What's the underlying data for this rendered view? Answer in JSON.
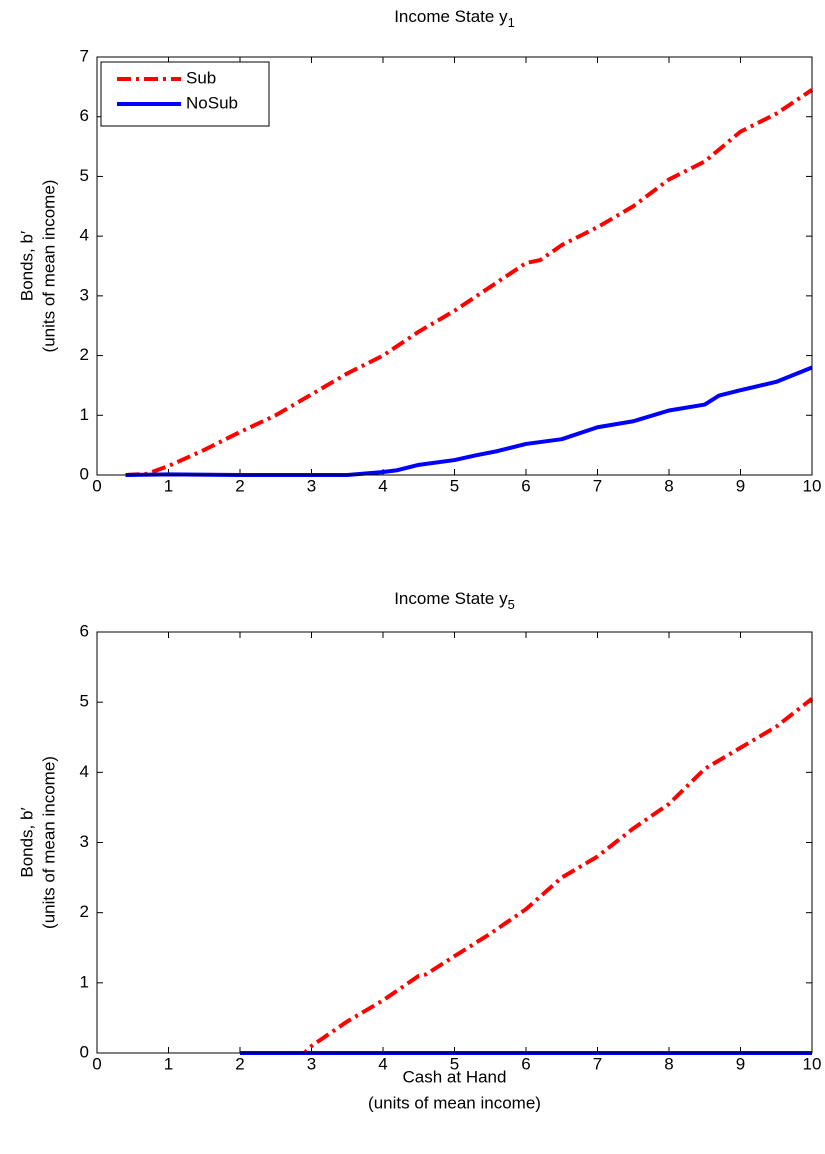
{
  "chart_data": [
    {
      "type": "line",
      "title": {
        "text": "Income State y",
        "subscript": "1"
      },
      "ylabel": [
        "Bonds, b′",
        "(units of mean income)"
      ],
      "xlim": [
        0,
        10
      ],
      "xticks": [
        0,
        1,
        2,
        3,
        4,
        5,
        6,
        7,
        8,
        9,
        10
      ],
      "ylim": [
        0,
        7
      ],
      "yticks": [
        0,
        1,
        2,
        3,
        4,
        5,
        6,
        7
      ],
      "grid": false,
      "legend": "upper left",
      "series": [
        {
          "name": "Sub",
          "color": "#ff0000",
          "linestyle": "dash-dot",
          "x": [
            0.4,
            0.7,
            1,
            1.5,
            2,
            2.5,
            3,
            3.5,
            4,
            4.5,
            5,
            5.5,
            6,
            6.2,
            6.5,
            7,
            7.5,
            8,
            8.5,
            9,
            9.5,
            10
          ],
          "values": [
            0,
            0.02,
            0.15,
            0.42,
            0.72,
            1.0,
            1.35,
            1.7,
            2.0,
            2.4,
            2.75,
            3.15,
            3.55,
            3.6,
            3.85,
            4.15,
            4.5,
            4.95,
            5.25,
            5.75,
            6.05,
            6.45
          ]
        },
        {
          "name": "NoSub",
          "color": "#0000ff",
          "linestyle": "solid",
          "x": [
            0.4,
            1,
            2,
            3,
            3.5,
            4,
            4.2,
            4.5,
            5,
            5.3,
            5.6,
            6,
            6.5,
            7,
            7.5,
            8,
            8.5,
            8.7,
            9,
            9.5,
            10
          ],
          "values": [
            0,
            0.01,
            0,
            0,
            0,
            0.05,
            0.08,
            0.17,
            0.25,
            0.33,
            0.4,
            0.52,
            0.6,
            0.8,
            0.9,
            1.08,
            1.18,
            1.33,
            1.42,
            1.56,
            1.8
          ]
        }
      ]
    },
    {
      "type": "line",
      "title": {
        "text": "Income State y",
        "subscript": "5"
      },
      "ylabel": [
        "Bonds, b′",
        "(units of mean income)"
      ],
      "xlabel": [
        "Cash at Hand",
        "(units of mean income)"
      ],
      "xlim": [
        0,
        10
      ],
      "xticks": [
        0,
        1,
        2,
        3,
        4,
        5,
        6,
        7,
        8,
        9,
        10
      ],
      "ylim": [
        0,
        6
      ],
      "yticks": [
        0,
        1,
        2,
        3,
        4,
        5,
        6
      ],
      "grid": false,
      "series": [
        {
          "name": "Sub",
          "color": "#ff0000",
          "linestyle": "dash-dot",
          "x": [
            2,
            2.9,
            3,
            3.5,
            4,
            4.5,
            4.6,
            5,
            5.5,
            6,
            6.5,
            7,
            7.5,
            8,
            8.5,
            9,
            9.5,
            10
          ],
          "values": [
            0,
            0,
            0.1,
            0.45,
            0.75,
            1.1,
            1.12,
            1.38,
            1.7,
            2.05,
            2.5,
            2.8,
            3.2,
            3.55,
            4.05,
            4.35,
            4.65,
            5.05
          ]
        },
        {
          "name": "NoSub",
          "color": "#0000ff",
          "linestyle": "solid",
          "x": [
            2,
            4,
            6,
            8,
            10
          ],
          "values": [
            0,
            0,
            0,
            0,
            0
          ]
        }
      ]
    }
  ]
}
